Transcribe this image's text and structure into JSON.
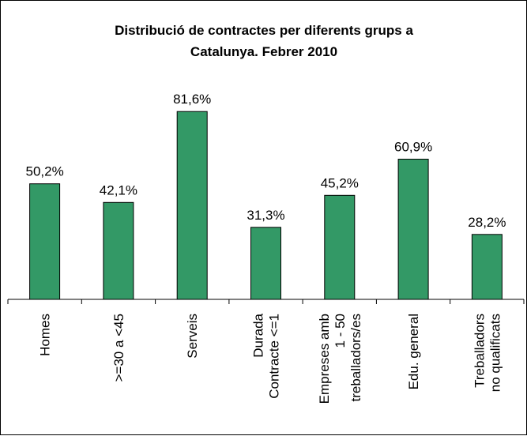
{
  "chart_data": {
    "type": "bar",
    "title_lines": [
      "Distribució de contractes per diferents grups a",
      "Catalunya. Febrer 2010"
    ],
    "categories": [
      [
        "Homes"
      ],
      [
        ">=30 a <45"
      ],
      [
        "Serveis"
      ],
      [
        "Durada",
        "Contracte <=1"
      ],
      [
        "Empreses amb",
        "1 - 50",
        "treballadors/es"
      ],
      [
        "Edu. general"
      ],
      [
        "Treballadors",
        "no qualificats"
      ]
    ],
    "values": [
      50.2,
      42.1,
      81.6,
      31.3,
      45.2,
      60.9,
      28.2
    ],
    "value_labels": [
      "50,2%",
      "42,1%",
      "81,6%",
      "31,3%",
      "45,2%",
      "60,9%",
      "28,2%"
    ],
    "ylim": [
      0,
      100
    ],
    "grid": false,
    "legend": "none",
    "colors": {
      "bar_fill": "#339966",
      "bar_stroke": "#000000"
    }
  }
}
